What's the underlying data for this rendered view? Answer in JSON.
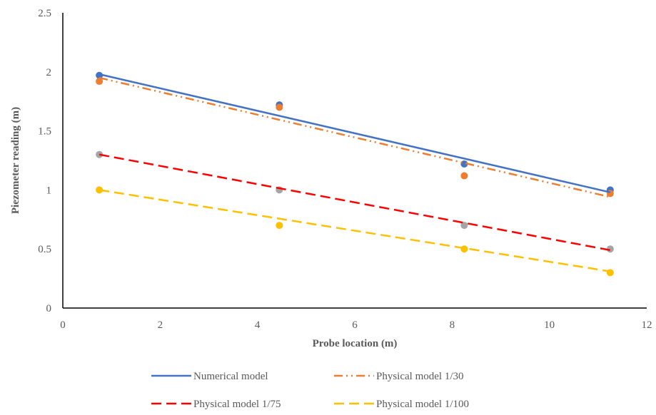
{
  "chart_data": {
    "type": "scatter",
    "title": "",
    "xlabel": "Probe location (m)",
    "ylabel": "Piezometer reading (m)",
    "xlim": [
      0,
      12
    ],
    "ylim": [
      0,
      2.5
    ],
    "xticks": [
      "0",
      "2",
      "4",
      "6",
      "8",
      "10",
      "12"
    ],
    "yticks": [
      "0",
      "0.5",
      "1",
      "1.5",
      "2",
      "2.5"
    ],
    "grid": false,
    "legend_position": "bottom",
    "scatter_series": [
      {
        "color": "#4472C4",
        "points": [
          [
            0.75,
            1.97
          ],
          [
            4.45,
            1.72
          ],
          [
            8.25,
            1.22
          ],
          [
            11.25,
            1.0
          ]
        ]
      },
      {
        "color": "#ED7D31",
        "points": [
          [
            0.75,
            1.92
          ],
          [
            4.45,
            1.7
          ],
          [
            8.25,
            1.12
          ],
          [
            11.25,
            0.97
          ]
        ]
      },
      {
        "color": "#A5A5A5",
        "points": [
          [
            0.75,
            1.3
          ],
          [
            4.45,
            1.0
          ],
          [
            8.25,
            0.7
          ],
          [
            11.25,
            0.5
          ]
        ]
      },
      {
        "color": "#FFC000",
        "points": [
          [
            0.75,
            1.0
          ],
          [
            4.45,
            0.7
          ],
          [
            8.25,
            0.5
          ],
          [
            11.25,
            0.3
          ]
        ]
      }
    ],
    "trendlines": [
      {
        "name": "Numerical model",
        "color": "#4472C4",
        "dash": "solid",
        "x": [
          0.75,
          11.25
        ],
        "y": [
          1.98,
          0.98
        ]
      },
      {
        "name": "Physical model 1/30",
        "color": "#ED7D31",
        "dash": "dash-dot-dot",
        "x": [
          0.75,
          11.25
        ],
        "y": [
          1.95,
          0.94
        ]
      },
      {
        "name": "Physical model 1/75",
        "color": "#FF0000",
        "dash": "dash",
        "x": [
          0.75,
          11.25
        ],
        "y": [
          1.3,
          0.49
        ]
      },
      {
        "name": "Physical model 1/100",
        "color": "#FFC000",
        "dash": "dash",
        "x": [
          0.75,
          11.25
        ],
        "y": [
          1.0,
          0.31
        ]
      }
    ]
  }
}
